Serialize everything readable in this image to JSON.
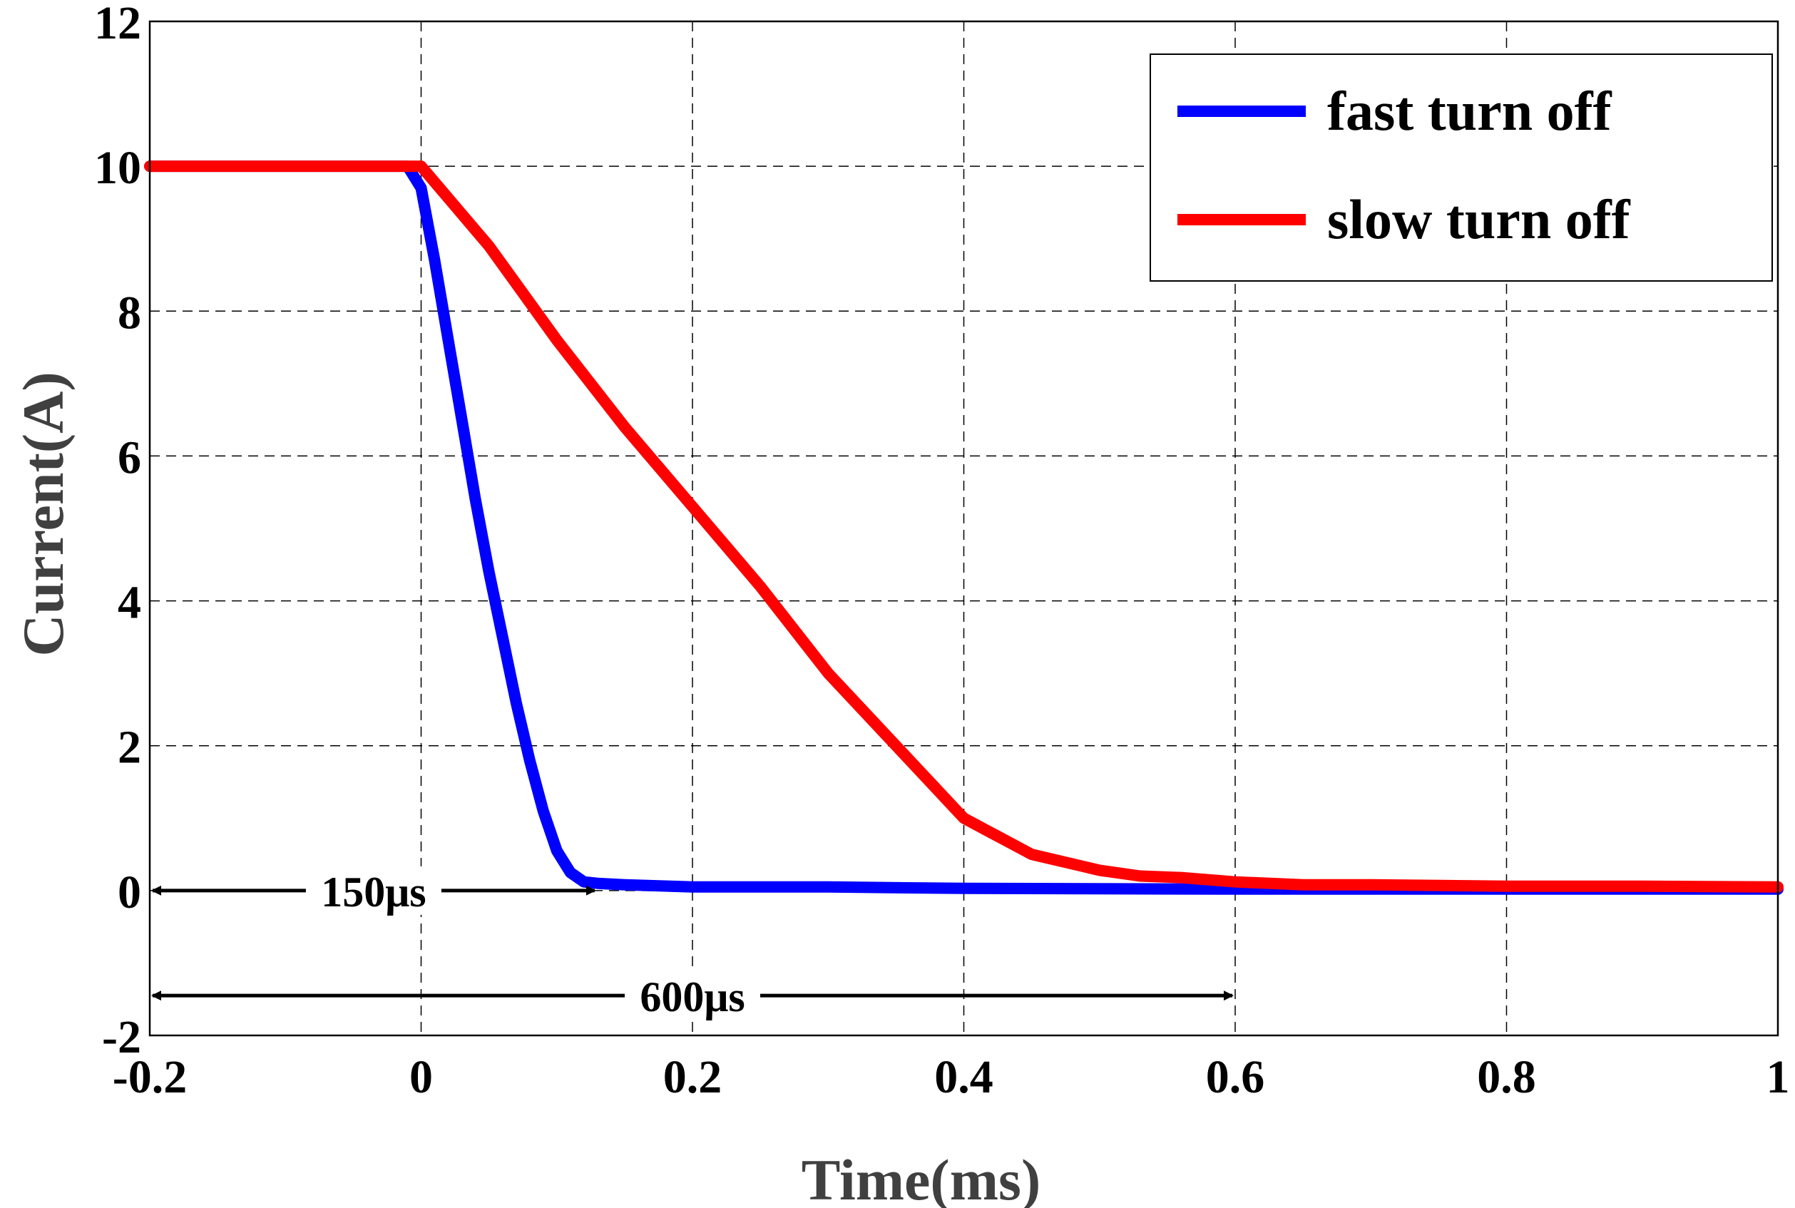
{
  "chart_data": {
    "type": "line",
    "title": "",
    "xlabel": "Time(ms)",
    "ylabel": "Current(A)",
    "xlim": [
      -0.2,
      1.0
    ],
    "ylim": [
      -2,
      12
    ],
    "xticks": [
      -0.2,
      0,
      0.2,
      0.4,
      0.6,
      0.8,
      1.0
    ],
    "xtick_labels": [
      "-0.2",
      "0",
      "0.2",
      "0.4",
      "0.6",
      "0.8",
      "1"
    ],
    "yticks": [
      -2,
      0,
      2,
      4,
      6,
      8,
      10,
      12
    ],
    "ytick_labels": [
      "-2",
      "0",
      "2",
      "4",
      "6",
      "8",
      "10",
      "12"
    ],
    "grid": true,
    "legend_position": "top-right",
    "series": [
      {
        "name": "fast turn off",
        "color": "#0000ff",
        "x": [
          -0.2,
          -0.15,
          -0.1,
          -0.05,
          -0.01,
          0.0,
          0.01,
          0.02,
          0.03,
          0.04,
          0.05,
          0.06,
          0.07,
          0.08,
          0.09,
          0.1,
          0.11,
          0.12,
          0.13,
          0.15,
          0.2,
          0.3,
          0.4,
          0.6,
          0.8,
          1.0
        ],
        "y": [
          10.0,
          10.0,
          10.0,
          10.0,
          10.0,
          9.7,
          8.7,
          7.6,
          6.5,
          5.4,
          4.4,
          3.5,
          2.6,
          1.8,
          1.1,
          0.55,
          0.25,
          0.12,
          0.1,
          0.08,
          0.05,
          0.05,
          0.03,
          0.02,
          0.02,
          0.02
        ]
      },
      {
        "name": "slow turn off",
        "color": "#ff0000",
        "x": [
          -0.2,
          -0.1,
          0.0,
          0.05,
          0.1,
          0.15,
          0.2,
          0.25,
          0.3,
          0.35,
          0.4,
          0.45,
          0.5,
          0.53,
          0.56,
          0.6,
          0.65,
          0.7,
          0.8,
          0.9,
          1.0
        ],
        "y": [
          10.0,
          10.0,
          10.0,
          8.9,
          7.6,
          6.4,
          5.3,
          4.2,
          3.0,
          2.0,
          1.0,
          0.5,
          0.28,
          0.2,
          0.18,
          0.12,
          0.08,
          0.08,
          0.06,
          0.06,
          0.05
        ]
      }
    ],
    "annotations": [
      {
        "text": "150μs",
        "x_start": -0.2,
        "x_end": 0.13,
        "y": 0
      },
      {
        "text": "600μs",
        "x_start": -0.2,
        "x_end": 0.6,
        "y": -1.45
      }
    ]
  }
}
